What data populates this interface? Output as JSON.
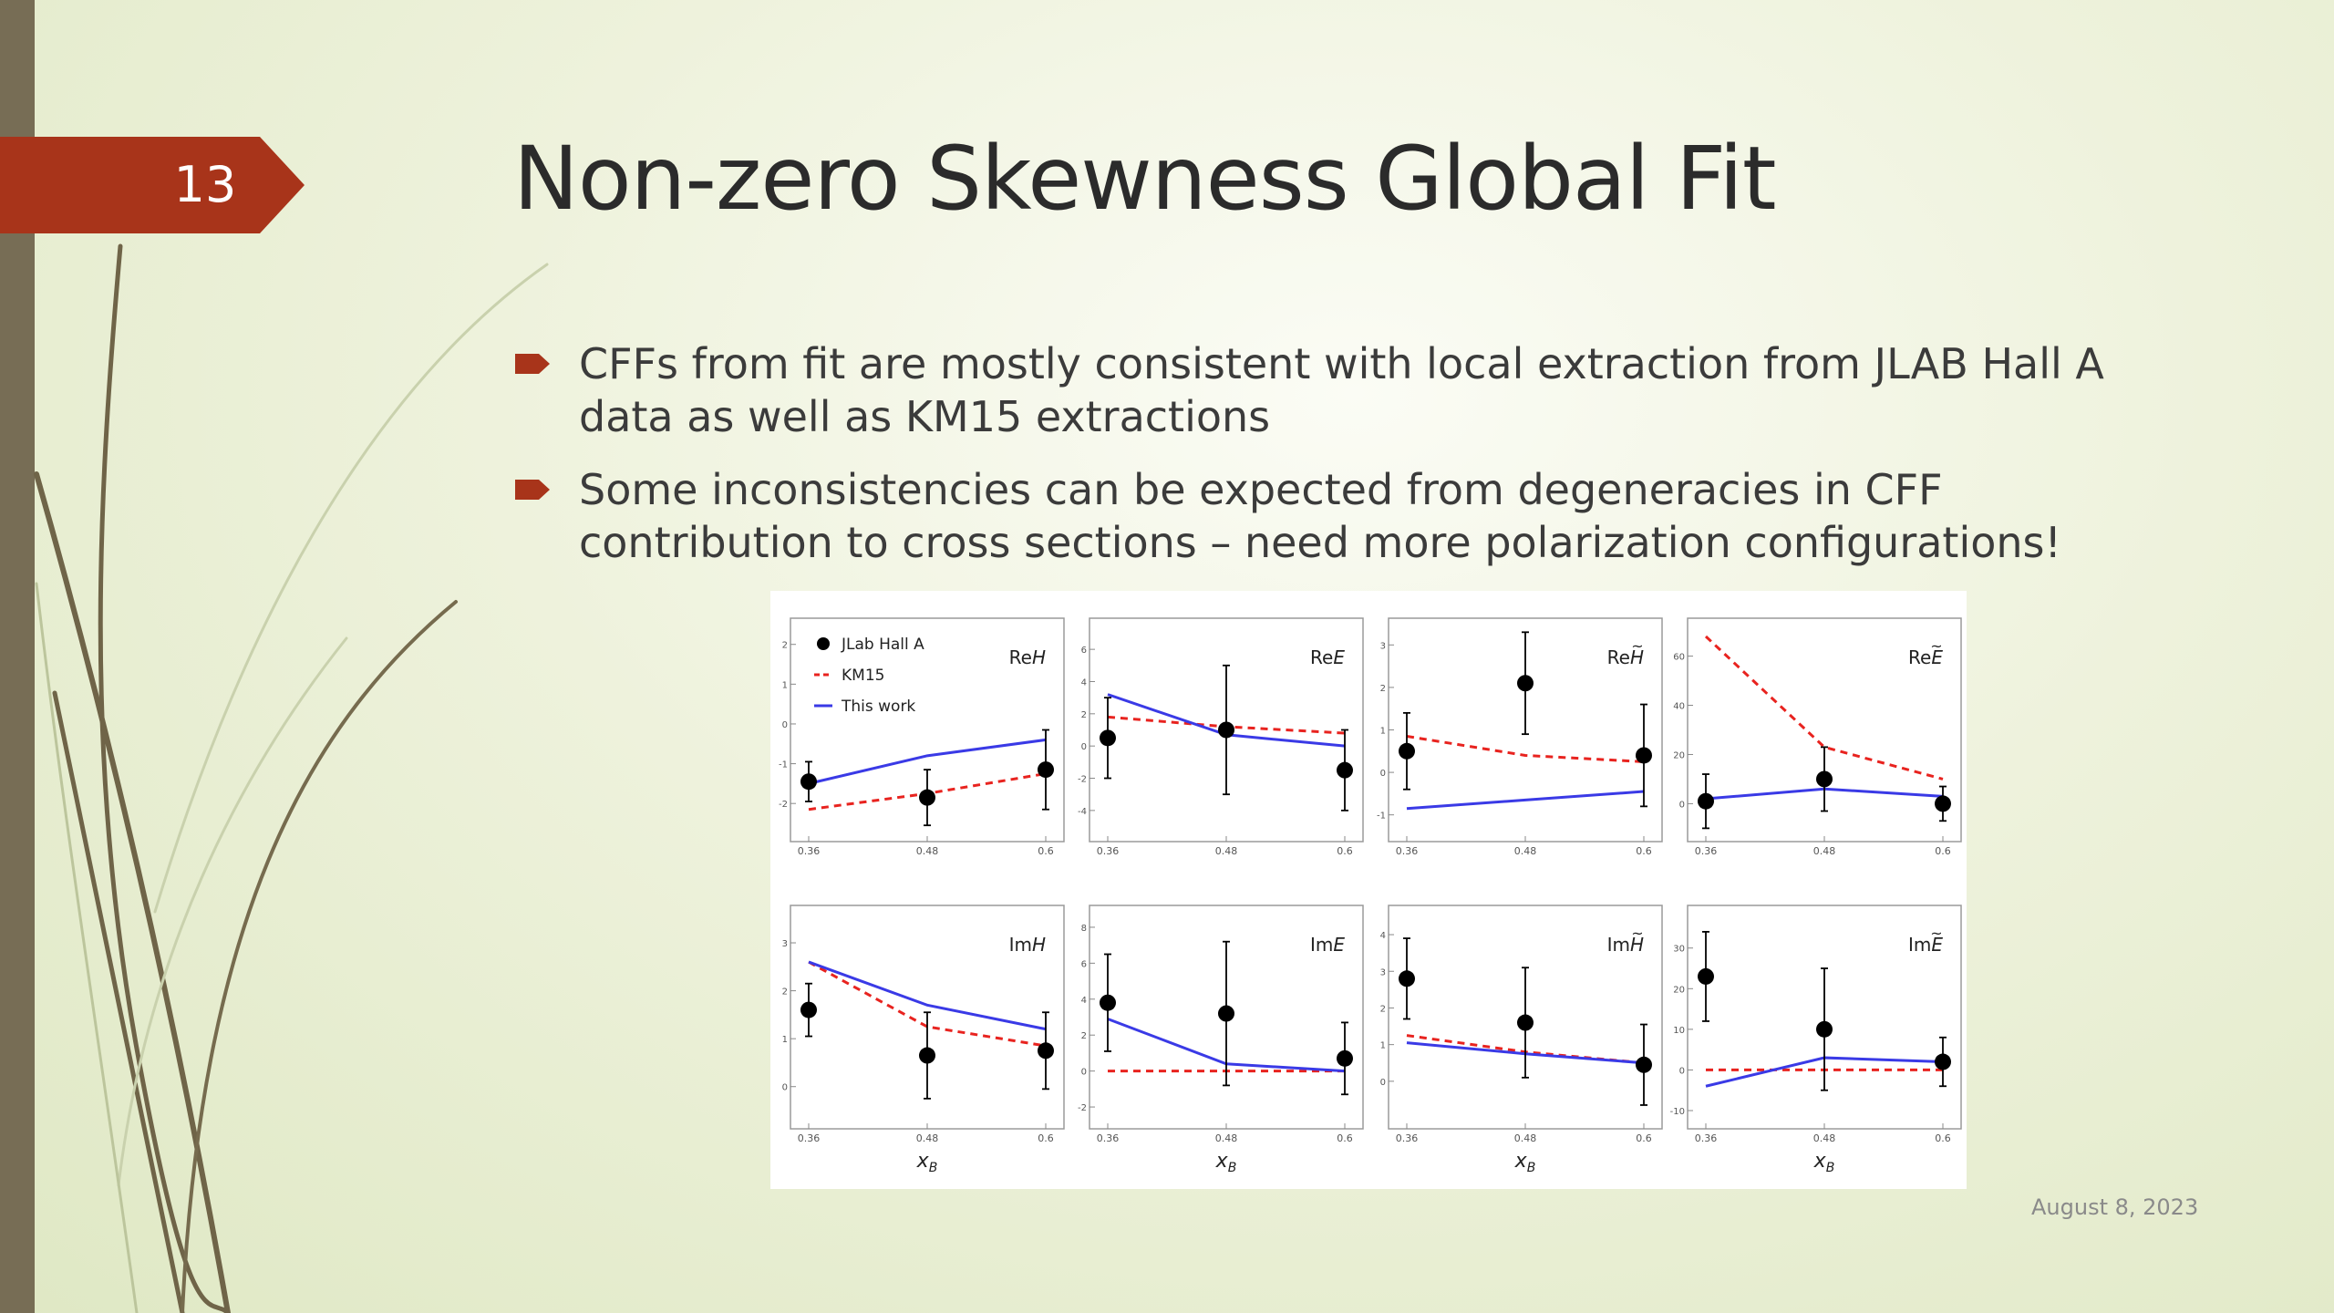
{
  "slide": {
    "number": "13",
    "title": "Non-zero Skewness Global Fit",
    "date": "August 8, 2023",
    "bullets": [
      "CFFs from fit are mostly consistent with local extraction from JLAB Hall A data as well as KM15 extractions",
      "Some inconsistencies can be expected from degeneracies in CFF contribution to cross sections – need more polarization configurations!"
    ],
    "accent_color": "#a8341a",
    "left_bar_color": "#776d55"
  },
  "chart_data": {
    "type": "line",
    "x": [
      0.36,
      0.48,
      0.6
    ],
    "x_tick_labels": [
      "0.36",
      "0.48",
      "0.6"
    ],
    "xlabel": "x_B",
    "legend": {
      "entries": [
        "JLab Hall A",
        "KM15",
        "This work"
      ],
      "placement": "top-left of first panel"
    },
    "series_colors": {
      "JLab Hall A": "#000000",
      "KM15": "#e8231f",
      "This work": "#3a3ae6"
    },
    "panels": [
      {
        "label": "ReH",
        "ylim": [
          -2.5,
          2.2
        ],
        "yticks": [
          -2,
          -1,
          0,
          1,
          2
        ],
        "data": [
          0.0,
          0.0,
          0.0
        ],
        "jlab": [
          -1.45,
          -1.85,
          -1.15
        ],
        "jlab_err": [
          0.5,
          0.7,
          1.0
        ],
        "km15": [
          -2.15,
          -1.75,
          -1.25
        ],
        "fit": [
          -1.5,
          -0.8,
          -0.4
        ]
      },
      {
        "label": "ReE",
        "ylim": [
          -4.8,
          6.8
        ],
        "yticks": [
          -4,
          -2,
          0,
          2,
          4,
          6
        ],
        "jlab": [
          0.5,
          1.0,
          -1.5
        ],
        "jlab_err": [
          2.5,
          4.0,
          2.5
        ],
        "km15": [
          1.8,
          1.2,
          0.8
        ],
        "fit": [
          3.2,
          0.7,
          0.0
        ]
      },
      {
        "label": "ReH~",
        "ylim": [
          -1.2,
          3.2
        ],
        "yticks": [
          -1,
          0,
          1,
          2,
          3
        ],
        "jlab": [
          0.5,
          2.1,
          0.4
        ],
        "jlab_err": [
          0.9,
          1.2,
          1.2
        ],
        "km15": [
          0.85,
          0.4,
          0.25
        ],
        "fit": [
          -0.85,
          -0.65,
          -0.45
        ]
      },
      {
        "label": "ReE~",
        "ylim": [
          -8,
          68
        ],
        "yticks": [
          0,
          20,
          40,
          60
        ],
        "jlab": [
          1,
          10,
          0
        ],
        "jlab_err": [
          11,
          13,
          7
        ],
        "km15": [
          68,
          23,
          10
        ],
        "fit": [
          2,
          6,
          3
        ]
      },
      {
        "label": "ImH",
        "ylim": [
          -0.5,
          3.4
        ],
        "yticks": [
          0,
          1,
          2,
          3
        ],
        "jlab": [
          1.6,
          0.65,
          0.75
        ],
        "jlab_err": [
          0.55,
          0.9,
          0.8
        ],
        "km15": [
          2.6,
          1.25,
          0.85
        ],
        "fit": [
          2.6,
          1.7,
          1.2
        ]
      },
      {
        "label": "ImE",
        "ylim": [
          -2.2,
          8.2
        ],
        "yticks": [
          -2,
          0,
          2,
          4,
          6,
          8
        ],
        "jlab": [
          3.8,
          3.2,
          0.7
        ],
        "jlab_err": [
          2.7,
          4.0,
          2.0
        ],
        "km15": [
          0.0,
          0.0,
          0.0
        ],
        "fit": [
          2.9,
          0.4,
          0.0
        ]
      },
      {
        "label": "ImH~",
        "ylim": [
          -0.8,
          4.3
        ],
        "yticks": [
          0,
          1,
          2,
          3,
          4
        ],
        "jlab": [
          2.8,
          1.6,
          0.45
        ],
        "jlab_err": [
          1.1,
          1.5,
          1.1
        ],
        "km15": [
          1.25,
          0.8,
          0.5
        ],
        "fit": [
          1.05,
          0.75,
          0.5
        ]
      },
      {
        "label": "ImE~",
        "ylim": [
          -10,
          36
        ],
        "yticks": [
          -10,
          0,
          10,
          20,
          30
        ],
        "jlab": [
          23,
          10,
          2
        ],
        "jlab_err": [
          11,
          15,
          6
        ],
        "km15": [
          0,
          0,
          0
        ],
        "fit": [
          -4,
          3,
          2
        ]
      }
    ]
  }
}
